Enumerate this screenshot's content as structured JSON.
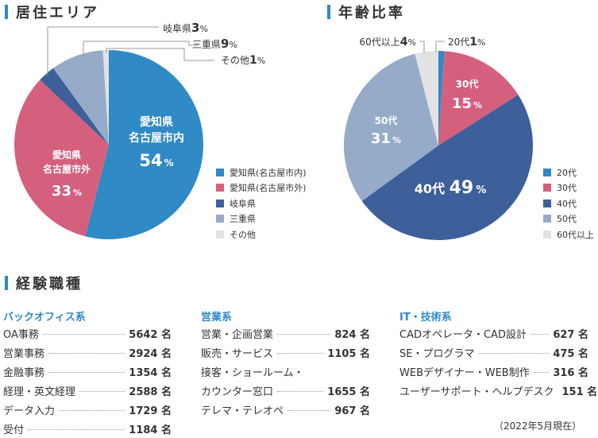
{
  "sections": {
    "residence_title": "居住エリア",
    "age_title": "年齢比率",
    "jobs_title": "経験職種"
  },
  "chart_data": [
    {
      "type": "pie",
      "title": "居住エリア",
      "slices": [
        {
          "label": "愛知県(名古屋市内)",
          "value": 54,
          "color": "#2f8ac6",
          "inside_line1": "愛知県",
          "inside_line2": "名古屋市内",
          "inside_value": "54",
          "unit": "%"
        },
        {
          "label": "愛知県(名古屋市外)",
          "value": 33,
          "color": "#d4607e",
          "inside_line1": "愛知県",
          "inside_line2": "名古屋市外",
          "inside_value": "33",
          "unit": "%"
        },
        {
          "label": "岐阜県",
          "value": 3,
          "color": "#3d5f9a",
          "callout_name": "岐阜県",
          "callout_value": "3",
          "unit": "%"
        },
        {
          "label": "三重県",
          "value": 9,
          "color": "#95abc8",
          "callout_name": "三重県",
          "callout_value": "9",
          "unit": "%"
        },
        {
          "label": "その他",
          "value": 1,
          "color": "#e2e2e2",
          "callout_name": "その他",
          "callout_value": "1",
          "unit": "%"
        }
      ]
    },
    {
      "type": "pie",
      "title": "年齢比率",
      "slices": [
        {
          "label": "20代",
          "value": 1,
          "color": "#2f8ac6",
          "callout_name": "20代",
          "callout_value": "1",
          "unit": "%"
        },
        {
          "label": "30代",
          "value": 15,
          "color": "#d4607e",
          "inside_name": "30代",
          "inside_value": "15",
          "unit": "%"
        },
        {
          "label": "40代",
          "value": 49,
          "color": "#3d5f9a",
          "inside_name": "40代",
          "inside_value": "49",
          "unit": "%"
        },
        {
          "label": "50代",
          "value": 31,
          "color": "#95abc8",
          "inside_name": "50代",
          "inside_value": "31",
          "unit": "%"
        },
        {
          "label": "60代以上",
          "value": 4,
          "color": "#e2e2e2",
          "callout_name": "60代以上",
          "callout_value": "4",
          "unit": "%"
        }
      ]
    }
  ],
  "jobs": [
    {
      "category": "バックオフィス系",
      "items": [
        {
          "name": "OA事務",
          "count": "5642 名"
        },
        {
          "name": "営業事務",
          "count": "2924 名"
        },
        {
          "name": "金融事務",
          "count": "1354 名"
        },
        {
          "name": "経理・英文経理",
          "count": "2588 名"
        },
        {
          "name": "データ入力",
          "count": "1729 名"
        },
        {
          "name": "受付",
          "count": "1184 名"
        }
      ]
    },
    {
      "category": "営業系",
      "items": [
        {
          "name": "営業・企画営業",
          "count": "824 名"
        },
        {
          "name": "販売・サービス",
          "count": "1105 名"
        },
        {
          "name": "接客・ショールーム・",
          "count": ""
        },
        {
          "name": "カウンター窓口",
          "count": "1655 名"
        },
        {
          "name": "テレマ・テレオペ",
          "count": "967 名"
        }
      ]
    },
    {
      "category": "IT・技術系",
      "items": [
        {
          "name": "CADオペレータ・CAD設計",
          "count": "627 名"
        },
        {
          "name": "SE・プログラマ",
          "count": "475 名"
        },
        {
          "name": "WEBデザイナー・WEB制作",
          "count": "316 名"
        },
        {
          "name": "ユーザーサポート・ヘルプデスク",
          "count": "151 名"
        }
      ]
    }
  ],
  "note": "（2022年5月現在）"
}
